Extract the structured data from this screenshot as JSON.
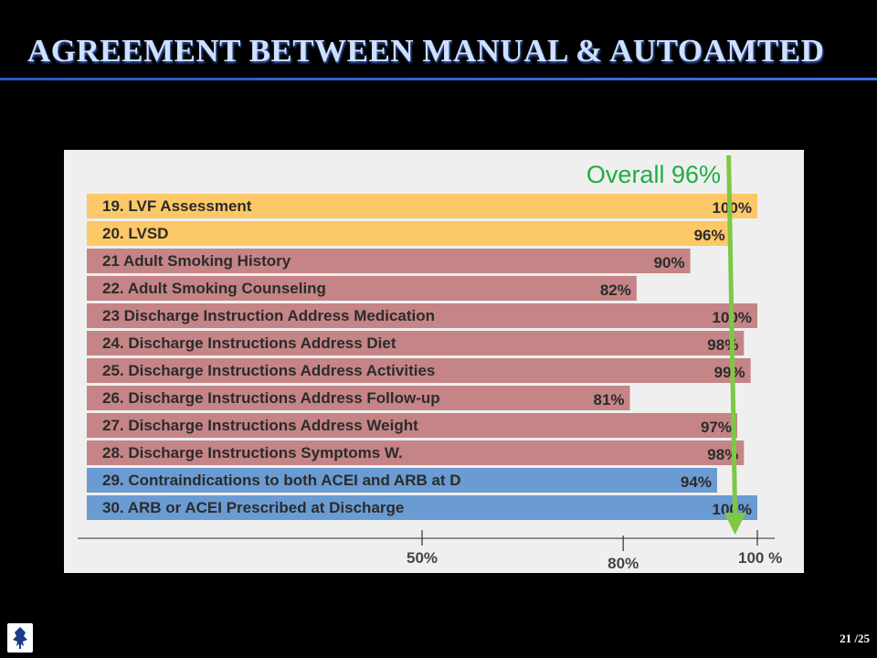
{
  "slide": {
    "title": "AGREEMENT  BETWEEN  MANUAL  &  AUTOAMTED",
    "page": "21 /25"
  },
  "colors": {
    "gold": "#fdc867",
    "rose": "#c58485",
    "blue": "#6a9bd3",
    "overall": "#7dc845",
    "overall_text": "#1fae41"
  },
  "chart_data": {
    "type": "bar",
    "orientation": "horizontal",
    "overall_label": "Overall 96%",
    "overall_value": 96,
    "categories": [
      "19. LVF Assessment",
      "20. LVSD",
      "21 Adult Smoking History",
      "22. Adult Smoking Counseling",
      "23 Discharge Instruction Address Medication",
      "24. Discharge Instructions Address Diet",
      "25. Discharge Instructions Address Activities",
      "26. Discharge Instructions Address Follow-up",
      "27. Discharge Instructions Address Weight",
      "28. Discharge Instructions Symptoms W.",
      "29. Contraindications to both ACEI and ARB at D",
      "30. ARB or ACEI Prescribed at Discharge"
    ],
    "values": [
      100,
      96,
      90,
      82,
      100,
      98,
      99,
      81,
      97,
      98,
      94,
      100
    ],
    "value_labels": [
      "100%",
      "96%",
      "90%",
      "82%",
      "100%",
      "98%",
      "99%",
      "81%",
      "97%",
      "98%",
      "94%",
      "100%"
    ],
    "bar_colors": [
      "gold",
      "gold",
      "rose",
      "rose",
      "rose",
      "rose",
      "rose",
      "rose",
      "rose",
      "rose",
      "blue",
      "blue"
    ],
    "x_ticks": [
      {
        "value": 50,
        "label": "50%"
      },
      {
        "value": 80,
        "label": "80%"
      },
      {
        "value": 100,
        "label": "100 %"
      }
    ],
    "xlim": [
      0,
      100
    ],
    "grid": false,
    "legend": "none"
  }
}
